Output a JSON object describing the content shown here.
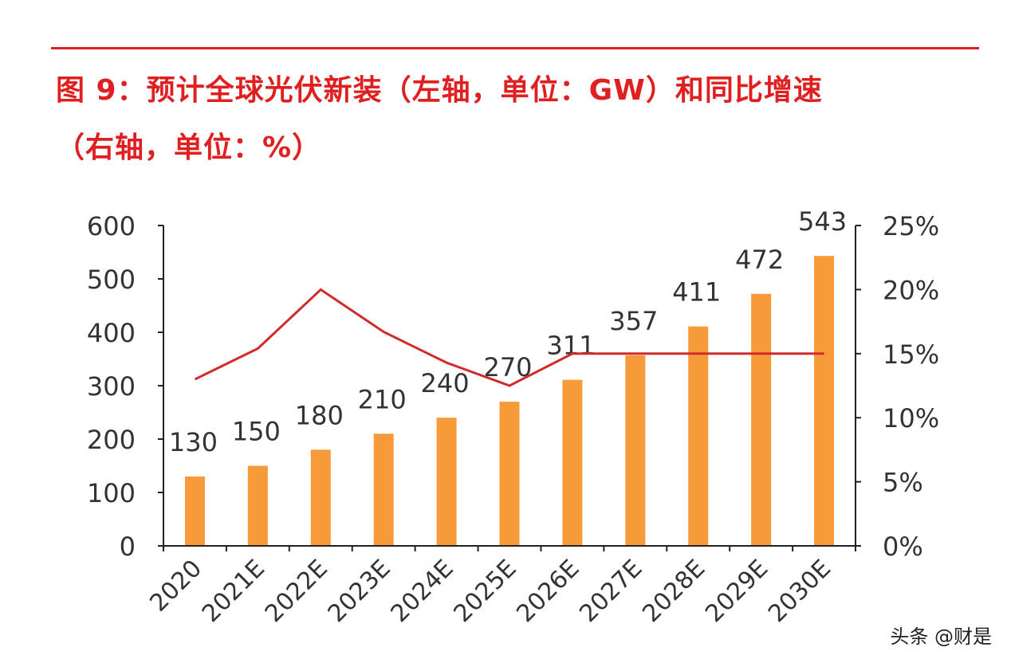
{
  "title": {
    "line1": "图 9：预计全球光伏新装（左轴，单位：GW）和同比增速",
    "line2": "（右轴，单位：%）"
  },
  "watermark": "头条 @财是",
  "colors": {
    "title": "#e02020",
    "bar": "#f79a3a",
    "line": "#d22b2b",
    "axis": "#222222",
    "text": "#333333"
  },
  "chart_data": {
    "type": "bar",
    "categories": [
      "2020",
      "2021E",
      "2022E",
      "2023E",
      "2024E",
      "2025E",
      "2026E",
      "2027E",
      "2028E",
      "2029E",
      "2030E"
    ],
    "series": [
      {
        "type": "bar",
        "axis": "left",
        "values": [
          130,
          150,
          180,
          210,
          240,
          270,
          311,
          357,
          411,
          472,
          543
        ],
        "data_labels": [
          "130",
          "150",
          "180",
          "210",
          "240",
          "270",
          "311",
          "357",
          "411",
          "472",
          "543"
        ]
      },
      {
        "type": "line",
        "axis": "right",
        "values": [
          13,
          15.4,
          20,
          16.7,
          14.3,
          12.5,
          15,
          15,
          15,
          15,
          15
        ]
      }
    ],
    "y_left": {
      "lim": [
        0,
        600
      ],
      "ticks": [
        0,
        100,
        200,
        300,
        400,
        500,
        600
      ],
      "tick_labels": [
        "0",
        "100",
        "200",
        "300",
        "400",
        "500",
        "600"
      ]
    },
    "y_right": {
      "lim": [
        0,
        25
      ],
      "ticks": [
        0,
        5,
        10,
        15,
        20,
        25
      ],
      "tick_labels": [
        "0%",
        "5%",
        "10%",
        "15%",
        "20%",
        "25%"
      ]
    },
    "grid": false,
    "legend": "none"
  }
}
